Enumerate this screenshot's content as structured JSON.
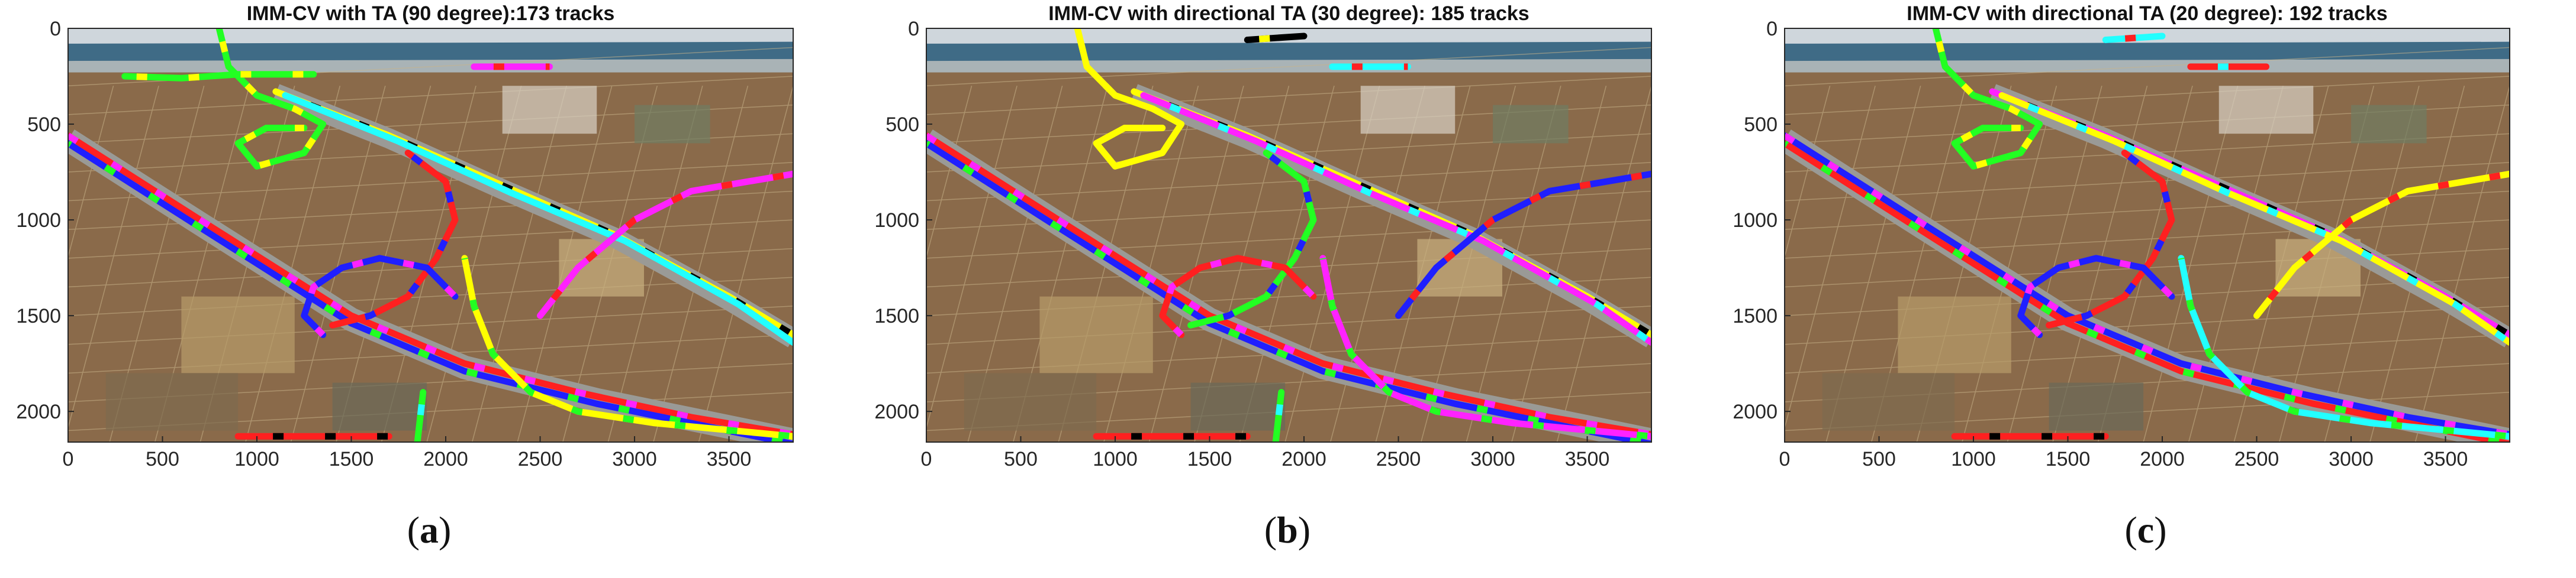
{
  "colors": {
    "track_palette": [
      "#ff2020",
      "#ffff00",
      "#1f1fff",
      "#ff22ff",
      "#22ff22",
      "#000000",
      "#22ffff"
    ],
    "sky": "#cfd6dc",
    "river": "#3f6b86",
    "fields": "#8a6a4a",
    "road": "#9a9a96"
  },
  "panels": [
    {
      "title": "IMM-CV with TA (90 degree):173 tracks",
      "label_open": "(",
      "label_letter": "a",
      "label_close": ")"
    },
    {
      "title": "IMM-CV with directional TA (30 degree): 185 tracks",
      "label_open": "(",
      "label_letter": "b",
      "label_close": ")"
    },
    {
      "title": "IMM-CV with directional TA (20 degree): 192 tracks",
      "label_open": "(",
      "label_letter": "c",
      "label_close": ")"
    }
  ],
  "chart_data": [
    {
      "type": "scatter",
      "title": "IMM-CV with TA (90 degree):173 tracks",
      "xlabel": "",
      "ylabel": "",
      "xlim": [
        0,
        3840
      ],
      "ylim": [
        2160,
        0
      ],
      "x_ticks": [
        0,
        500,
        1000,
        1500,
        2000,
        2500,
        3000,
        3500
      ],
      "y_ticks": [
        0,
        500,
        1000,
        1500,
        2000
      ],
      "track_count": 173,
      "background": "aerial photograph of highway interchange",
      "tracks": [
        {
          "color": "#ff2020",
          "points": [
            [
              0,
              560
            ],
            [
              700,
              1000
            ],
            [
              1500,
              1500
            ],
            [
              2100,
              1750
            ],
            [
              2700,
              1900
            ],
            [
              3300,
              2030
            ],
            [
              3840,
              2120
            ]
          ]
        },
        {
          "color": "#1f1fff",
          "points": [
            [
              0,
              600
            ],
            [
              700,
              1040
            ],
            [
              1500,
              1540
            ],
            [
              2100,
              1790
            ],
            [
              2800,
              1960
            ],
            [
              3840,
              2170
            ]
          ]
        },
        {
          "color": "#ffff00",
          "points": [
            [
              1100,
              330
            ],
            [
              1700,
              560
            ],
            [
              2300,
              820
            ],
            [
              2900,
              1080
            ],
            [
              3500,
              1400
            ],
            [
              3840,
              1600
            ]
          ]
        },
        {
          "color": "#22ffff",
          "points": [
            [
              1150,
              350
            ],
            [
              1750,
              590
            ],
            [
              2350,
              860
            ],
            [
              2950,
              1110
            ],
            [
              3550,
              1440
            ],
            [
              3840,
              1640
            ]
          ]
        },
        {
          "color": "#ff22ff",
          "points": [
            [
              2500,
              1500
            ],
            [
              2700,
              1250
            ],
            [
              3000,
              1000
            ],
            [
              3300,
              850
            ],
            [
              3840,
              760
            ]
          ]
        },
        {
          "color": "#22ff22",
          "points": [
            [
              800,
              0
            ],
            [
              850,
              200
            ],
            [
              1000,
              350
            ],
            [
              1200,
              420
            ],
            [
              1350,
              500
            ],
            [
              1250,
              650
            ],
            [
              1000,
              720
            ],
            [
              900,
              600
            ],
            [
              1050,
              520
            ],
            [
              1250,
              520
            ]
          ]
        },
        {
          "color": "#ff2020",
          "points": [
            [
              1800,
              650
            ],
            [
              2000,
              800
            ],
            [
              2050,
              1000
            ],
            [
              1950,
              1200
            ],
            [
              1800,
              1400
            ],
            [
              1600,
              1500
            ],
            [
              1400,
              1550
            ]
          ]
        },
        {
          "color": "#1f1fff",
          "points": [
            [
              1350,
              1600
            ],
            [
              1250,
              1500
            ],
            [
              1300,
              1350
            ],
            [
              1450,
              1250
            ],
            [
              1650,
              1200
            ],
            [
              1900,
              1250
            ],
            [
              2050,
              1400
            ]
          ]
        },
        {
          "color": "#ffff00",
          "points": [
            [
              2100,
              1200
            ],
            [
              2150,
              1450
            ],
            [
              2250,
              1700
            ],
            [
              2450,
              1900
            ],
            [
              2700,
              2000
            ],
            [
              3100,
              2060
            ],
            [
              3840,
              2130
            ]
          ]
        },
        {
          "color": "#ff2020",
          "points": [
            [
              900,
              2130
            ],
            [
              1700,
              2130
            ]
          ]
        },
        {
          "color": "#22ff22",
          "points": [
            [
              1850,
              2160
            ],
            [
              1880,
              1900
            ]
          ]
        },
        {
          "color": "#ff22ff",
          "points": [
            [
              2150,
              200
            ],
            [
              2550,
              200
            ]
          ]
        },
        {
          "color": "#22ff22",
          "points": [
            [
              300,
              250
            ],
            [
              600,
              260
            ],
            [
              900,
              240
            ],
            [
              1300,
              240
            ]
          ]
        }
      ]
    },
    {
      "type": "scatter",
      "title": "IMM-CV with directional TA (30 degree): 185 tracks",
      "xlabel": "",
      "ylabel": "",
      "xlim": [
        0,
        3840
      ],
      "ylim": [
        2160,
        0
      ],
      "x_ticks": [
        0,
        500,
        1000,
        1500,
        2000,
        2500,
        3000,
        3500
      ],
      "y_ticks": [
        0,
        500,
        1000,
        1500,
        2000
      ],
      "track_count": 185,
      "background": "aerial photograph of highway interchange",
      "tracks": [
        {
          "color": "#ff2020",
          "points": [
            [
              0,
              560
            ],
            [
              700,
              1000
            ],
            [
              1500,
              1500
            ],
            [
              2100,
              1750
            ],
            [
              2700,
              1900
            ],
            [
              3300,
              2030
            ],
            [
              3840,
              2120
            ]
          ]
        },
        {
          "color": "#1f1fff",
          "points": [
            [
              0,
              600
            ],
            [
              700,
              1040
            ],
            [
              1500,
              1540
            ],
            [
              2100,
              1790
            ],
            [
              2800,
              1960
            ],
            [
              3840,
              2170
            ]
          ]
        },
        {
          "color": "#ffff00",
          "points": [
            [
              1100,
              330
            ],
            [
              1700,
              560
            ],
            [
              2300,
              820
            ],
            [
              2900,
              1080
            ],
            [
              3500,
              1400
            ],
            [
              3840,
              1600
            ]
          ]
        },
        {
          "color": "#ff22ff",
          "points": [
            [
              1150,
              350
            ],
            [
              1750,
              590
            ],
            [
              2350,
              860
            ],
            [
              2950,
              1110
            ],
            [
              3550,
              1440
            ],
            [
              3840,
              1640
            ]
          ]
        },
        {
          "color": "#1f1fff",
          "points": [
            [
              2500,
              1500
            ],
            [
              2700,
              1250
            ],
            [
              3000,
              1000
            ],
            [
              3300,
              850
            ],
            [
              3840,
              760
            ]
          ]
        },
        {
          "color": "#ffff00",
          "points": [
            [
              800,
              0
            ],
            [
              850,
              200
            ],
            [
              1000,
              350
            ],
            [
              1200,
              420
            ],
            [
              1350,
              500
            ],
            [
              1250,
              650
            ],
            [
              1000,
              720
            ],
            [
              900,
              600
            ],
            [
              1050,
              520
            ],
            [
              1250,
              520
            ]
          ]
        },
        {
          "color": "#22ff22",
          "points": [
            [
              1800,
              650
            ],
            [
              2000,
              800
            ],
            [
              2050,
              1000
            ],
            [
              1950,
              1200
            ],
            [
              1800,
              1400
            ],
            [
              1600,
              1500
            ],
            [
              1400,
              1550
            ]
          ]
        },
        {
          "color": "#ff2020",
          "points": [
            [
              1350,
              1600
            ],
            [
              1250,
              1500
            ],
            [
              1300,
              1350
            ],
            [
              1450,
              1250
            ],
            [
              1650,
              1200
            ],
            [
              1900,
              1250
            ],
            [
              2050,
              1400
            ]
          ]
        },
        {
          "color": "#ff22ff",
          "points": [
            [
              2100,
              1200
            ],
            [
              2150,
              1450
            ],
            [
              2250,
              1700
            ],
            [
              2450,
              1900
            ],
            [
              2700,
              2000
            ],
            [
              3100,
              2060
            ],
            [
              3840,
              2130
            ]
          ]
        },
        {
          "color": "#ff2020",
          "points": [
            [
              900,
              2130
            ],
            [
              1700,
              2130
            ]
          ]
        },
        {
          "color": "#22ff22",
          "points": [
            [
              1850,
              2160
            ],
            [
              1880,
              1900
            ]
          ]
        },
        {
          "color": "#22ffff",
          "points": [
            [
              2150,
              200
            ],
            [
              2550,
              200
            ]
          ]
        },
        {
          "color": "#000000",
          "points": [
            [
              1700,
              60
            ],
            [
              2000,
              40
            ]
          ]
        }
      ]
    },
    {
      "type": "scatter",
      "title": "IMM-CV with directional TA (20 degree): 192 tracks",
      "xlabel": "",
      "ylabel": "",
      "xlim": [
        0,
        3840
      ],
      "ylim": [
        2160,
        0
      ],
      "x_ticks": [
        0,
        500,
        1000,
        1500,
        2000,
        2500,
        3000,
        3500
      ],
      "y_ticks": [
        0,
        500,
        1000,
        1500,
        2000
      ],
      "track_count": 192,
      "background": "aerial photograph of highway interchange",
      "tracks": [
        {
          "color": "#1f1fff",
          "points": [
            [
              0,
              560
            ],
            [
              700,
              1000
            ],
            [
              1500,
              1500
            ],
            [
              2100,
              1750
            ],
            [
              2700,
              1900
            ],
            [
              3300,
              2030
            ],
            [
              3840,
              2120
            ]
          ]
        },
        {
          "color": "#ff2020",
          "points": [
            [
              0,
              600
            ],
            [
              700,
              1040
            ],
            [
              1500,
              1540
            ],
            [
              2100,
              1790
            ],
            [
              2800,
              1960
            ],
            [
              3840,
              2170
            ]
          ]
        },
        {
          "color": "#ff22ff",
          "points": [
            [
              1100,
              330
            ],
            [
              1700,
              560
            ],
            [
              2300,
              820
            ],
            [
              2900,
              1080
            ],
            [
              3500,
              1400
            ],
            [
              3840,
              1600
            ]
          ]
        },
        {
          "color": "#ffff00",
          "points": [
            [
              1150,
              350
            ],
            [
              1750,
              590
            ],
            [
              2350,
              860
            ],
            [
              2950,
              1110
            ],
            [
              3550,
              1440
            ],
            [
              3840,
              1640
            ]
          ]
        },
        {
          "color": "#ffff00",
          "points": [
            [
              2500,
              1500
            ],
            [
              2700,
              1250
            ],
            [
              3000,
              1000
            ],
            [
              3300,
              850
            ],
            [
              3840,
              760
            ]
          ]
        },
        {
          "color": "#22ff22",
          "points": [
            [
              800,
              0
            ],
            [
              850,
              200
            ],
            [
              1000,
              350
            ],
            [
              1200,
              420
            ],
            [
              1350,
              500
            ],
            [
              1250,
              650
            ],
            [
              1000,
              720
            ],
            [
              900,
              600
            ],
            [
              1050,
              520
            ],
            [
              1250,
              520
            ]
          ]
        },
        {
          "color": "#ff2020",
          "points": [
            [
              1800,
              650
            ],
            [
              2000,
              800
            ],
            [
              2050,
              1000
            ],
            [
              1950,
              1200
            ],
            [
              1800,
              1400
            ],
            [
              1600,
              1500
            ],
            [
              1400,
              1550
            ]
          ]
        },
        {
          "color": "#1f1fff",
          "points": [
            [
              1350,
              1600
            ],
            [
              1250,
              1500
            ],
            [
              1300,
              1350
            ],
            [
              1450,
              1250
            ],
            [
              1650,
              1200
            ],
            [
              1900,
              1250
            ],
            [
              2050,
              1400
            ]
          ]
        },
        {
          "color": "#22ffff",
          "points": [
            [
              2100,
              1200
            ],
            [
              2150,
              1450
            ],
            [
              2250,
              1700
            ],
            [
              2450,
              1900
            ],
            [
              2700,
              2000
            ],
            [
              3100,
              2060
            ],
            [
              3840,
              2130
            ]
          ]
        },
        {
          "color": "#ff2020",
          "points": [
            [
              900,
              2130
            ],
            [
              1700,
              2130
            ]
          ]
        },
        {
          "color": "#ff2020",
          "points": [
            [
              2150,
              200
            ],
            [
              2550,
              200
            ]
          ]
        },
        {
          "color": "#22ffff",
          "points": [
            [
              1700,
              60
            ],
            [
              2000,
              40
            ]
          ]
        }
      ]
    }
  ]
}
